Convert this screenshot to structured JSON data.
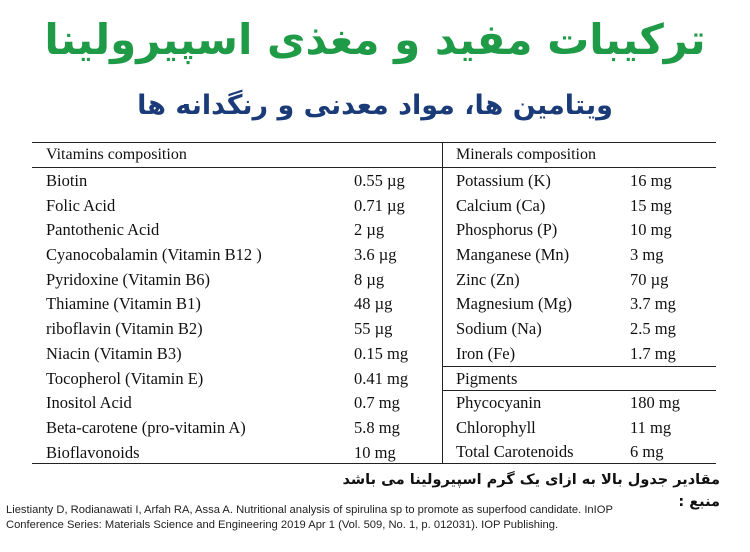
{
  "title": "ترکیبات مفید و مغذی اسپیرولینا",
  "subtitle": "ویتامین ها، مواد معدنی و رنگدانه ها",
  "table": {
    "vitamins_header": "Vitamins composition",
    "minerals_header": "Minerals composition",
    "pigments_header": "Pigments",
    "vitamins": [
      {
        "name": "Biotin",
        "value": "0.55 µg"
      },
      {
        "name": "Folic Acid",
        "value": "0.71 µg"
      },
      {
        "name": "Pantothenic Acid",
        "value": "2 µg"
      },
      {
        "name": "Cyanocobalamin (Vitamin B12 )",
        "value": "3.6 µg"
      },
      {
        "name": "Pyridoxine (Vitamin B6)",
        "value": "8 µg"
      },
      {
        "name": "Thiamine (Vitamin B1)",
        "value": "48 µg"
      },
      {
        "name": "riboflavin (Vitamin B2)",
        "value": "55 µg"
      },
      {
        "name": "Niacin (Vitamin B3)",
        "value": "0.15 mg"
      },
      {
        "name": "Tocopherol (Vitamin E)",
        "value": "0.41 mg"
      },
      {
        "name": "Inositol Acid",
        "value": "0.7 mg"
      },
      {
        "name": "Beta-carotene (pro-vitamin A)",
        "value": "5.8 mg"
      },
      {
        "name": "Bioflavonoids",
        "value": "10 mg"
      }
    ],
    "minerals": [
      {
        "name": "Potassium (K)",
        "value": "16 mg"
      },
      {
        "name": "Calcium (Ca)",
        "value": "15 mg"
      },
      {
        "name": "Phosphorus (P)",
        "value": "10 mg"
      },
      {
        "name": "Manganese (Mn)",
        "value": "3 mg"
      },
      {
        "name": "Zinc (Zn)",
        "value": "70 µg"
      },
      {
        "name": "Magnesium (Mg)",
        "value": "3.7 mg"
      },
      {
        "name": "Sodium (Na)",
        "value": "2.5 mg"
      },
      {
        "name": "Iron (Fe)",
        "value": "1.7 mg"
      }
    ],
    "pigments": [
      {
        "name": "Phycocyanin",
        "value": "180 mg"
      },
      {
        "name": "Chlorophyll",
        "value": "11 mg"
      },
      {
        "name": "Total Carotenoids",
        "value": "6 mg"
      }
    ]
  },
  "note": "مقادیر جدول بالا به ازای یک گرم اسپیرولینا می باشد",
  "source_label": "منبع :",
  "citation": "Liestianty D, Rodianawati I, Arfah RA, Assa A. Nutritional analysis of spirulina sp to promote as superfood candidate. InIOP Conference Series: Materials Science and Engineering 2019 Apr 1 (Vol. 509, No. 1, p. 012031). IOP Publishing."
}
